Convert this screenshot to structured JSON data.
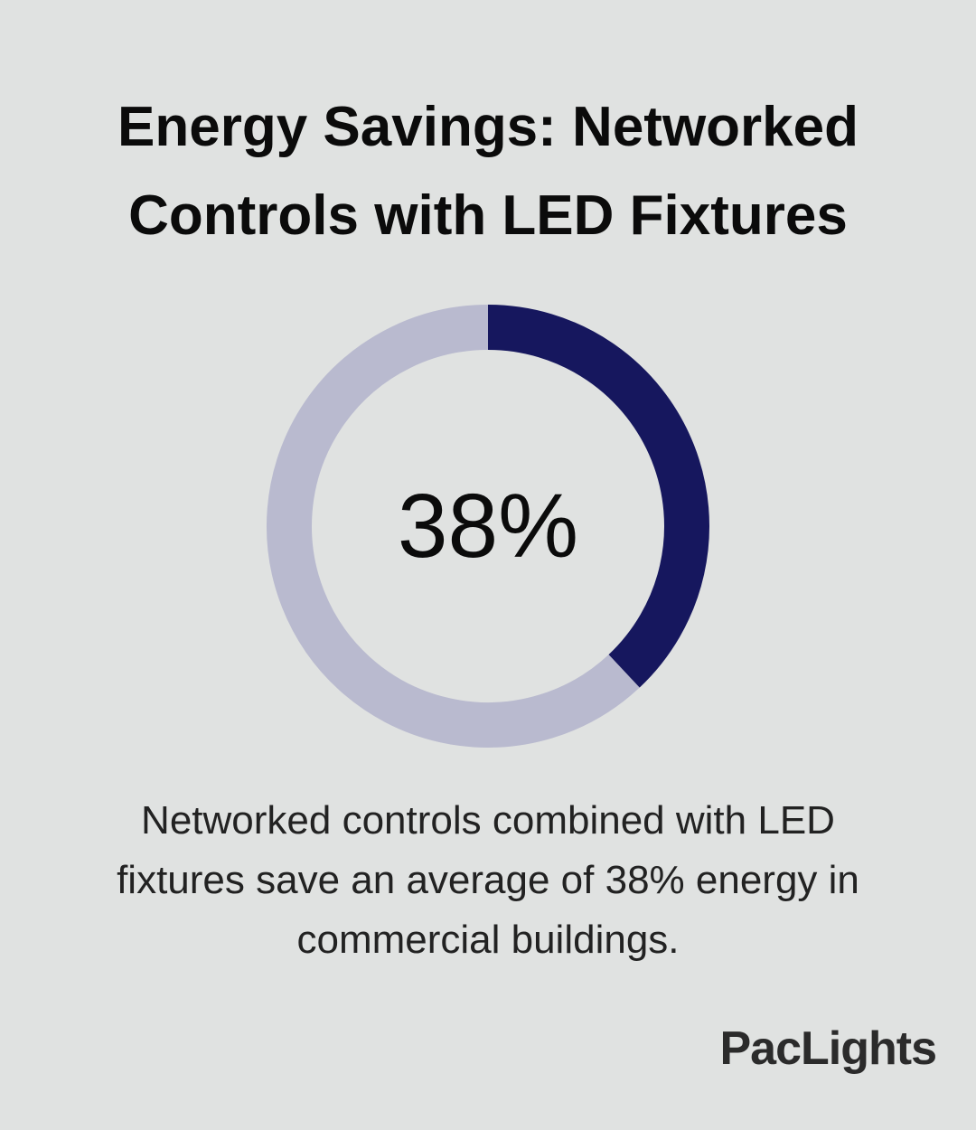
{
  "chart_data": {
    "type": "donut",
    "title": "Energy Savings: Networked Controls with LED Fixtures",
    "values": [
      38,
      62
    ],
    "value_labels": [
      "38%",
      null
    ],
    "colors": [
      "#16175e",
      "#b9bacf"
    ],
    "caption": "Networked controls combined with LED fixtures save an average of 38% energy in commercial buildings.",
    "brand": "PacLights"
  }
}
